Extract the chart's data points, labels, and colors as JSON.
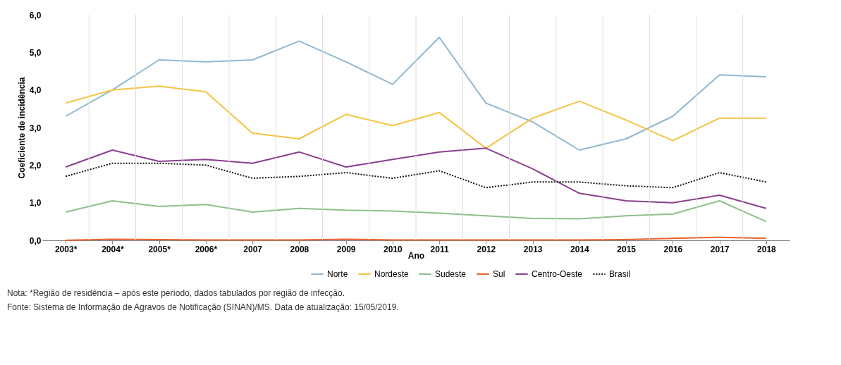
{
  "chart_data": {
    "type": "line",
    "xlabel": "Ano",
    "ylabel": "Coeficiente de incidência",
    "categories": [
      "2003*",
      "2004*",
      "2005*",
      "2006*",
      "2007",
      "2008",
      "2009",
      "2010",
      "2011",
      "2012",
      "2013",
      "2014",
      "2015",
      "2016",
      "2017",
      "2018"
    ],
    "series": [
      {
        "name": "Norte",
        "color": "#8fb8d0",
        "line_style": "solid",
        "values": [
          3.3,
          4.0,
          4.8,
          4.75,
          4.8,
          5.3,
          4.75,
          4.15,
          5.4,
          3.65,
          3.15,
          2.4,
          2.7,
          3.3,
          4.4,
          4.35
        ]
      },
      {
        "name": "Nordeste",
        "color": "#f5c342",
        "line_style": "solid",
        "values": [
          3.65,
          4.0,
          4.1,
          3.95,
          2.85,
          2.7,
          3.35,
          3.05,
          3.4,
          2.45,
          3.25,
          3.7,
          3.2,
          2.65,
          3.25,
          3.25
        ]
      },
      {
        "name": "Sudeste",
        "color": "#8dbf8b",
        "line_style": "solid",
        "values": [
          0.75,
          1.05,
          0.9,
          0.95,
          0.75,
          0.85,
          0.8,
          0.78,
          0.72,
          0.65,
          0.58,
          0.57,
          0.65,
          0.7,
          1.05,
          0.5
        ]
      },
      {
        "name": "Sul",
        "color": "#e8622c",
        "line_style": "solid",
        "values": [
          0.0,
          0.03,
          0.02,
          0.01,
          0.01,
          0.01,
          0.03,
          0.01,
          0.01,
          0.01,
          0.01,
          0.01,
          0.02,
          0.05,
          0.08,
          0.05
        ]
      },
      {
        "name": "Centro-Oeste",
        "color": "#8a3f8f",
        "line_style": "solid",
        "values": [
          1.95,
          2.4,
          2.1,
          2.15,
          2.05,
          2.35,
          1.95,
          2.15,
          2.35,
          2.45,
          1.9,
          1.25,
          1.05,
          1.0,
          1.2,
          0.85
        ]
      },
      {
        "name": "Brasil",
        "color": "#111111",
        "line_style": "dotted",
        "values": [
          1.7,
          2.05,
          2.05,
          2.0,
          1.65,
          1.7,
          1.8,
          1.65,
          1.85,
          1.4,
          1.55,
          1.55,
          1.45,
          1.4,
          1.8,
          1.55
        ]
      }
    ],
    "ylim": [
      0,
      6
    ],
    "yticks": [
      {
        "value": 0,
        "label": "0,0"
      },
      {
        "value": 1,
        "label": "1,0"
      },
      {
        "value": 2,
        "label": "2,0"
      },
      {
        "value": 3,
        "label": "3,0"
      },
      {
        "value": 4,
        "label": "4,0"
      },
      {
        "value": 5,
        "label": "5,0"
      },
      {
        "value": 6,
        "label": "6,0"
      }
    ],
    "grid": "x",
    "legend": "bottom",
    "marker": "none",
    "annotations": [
      "Nota: *Região de residência – após este período, dados tabulados por região de infecção.",
      "Fonte: Sistema de Informação de Agravos de Notificação (SINAN)/MS. Data de atualização: 15/05/2019."
    ]
  }
}
